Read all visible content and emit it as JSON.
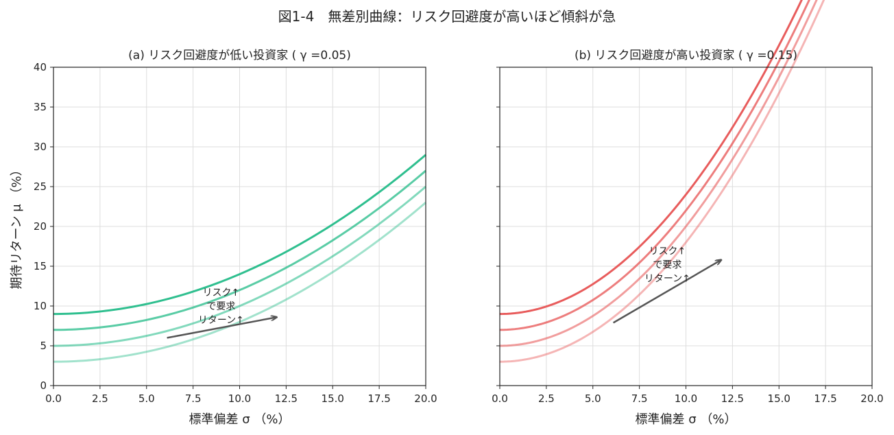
{
  "figure_title": "図1-4　無差別曲線：リスク回避度が高いほど傾斜が急",
  "colors": {
    "green": "#2fbf8f",
    "red": "#e85c5c",
    "arrow": "#555555",
    "grid": "#dddddd"
  },
  "chart_data": [
    {
      "type": "line",
      "title": "(a) リスク回避度が低い投資家 ( γ =0.05)",
      "xlabel": "標準偏差 σ （%）",
      "ylabel": "期待リターン μ （%）",
      "xlim": [
        0,
        20
      ],
      "ylim": [
        0,
        40
      ],
      "xticks": [
        "0.0",
        "2.5",
        "5.0",
        "7.5",
        "10.0",
        "12.5",
        "15.0",
        "17.5",
        "20.0"
      ],
      "yticks": [
        "0",
        "5",
        "10",
        "15",
        "20",
        "25",
        "30",
        "35",
        "40"
      ],
      "grid": true,
      "color_key": "green",
      "gamma": 0.05,
      "series": [
        {
          "intercept": 9,
          "opacity": 1.0
        },
        {
          "intercept": 7,
          "opacity": 0.8
        },
        {
          "intercept": 5,
          "opacity": 0.6
        },
        {
          "intercept": 3,
          "opacity": 0.45
        }
      ],
      "annotation": {
        "lines": [
          "リスク↑",
          "で要求",
          "リターン↑"
        ],
        "arrow_from": [
          6.1,
          6.0
        ],
        "arrow_to": [
          12.0,
          8.6
        ],
        "text_at": [
          9.0,
          10.0
        ]
      }
    },
    {
      "type": "line",
      "title": "(b) リスク回避度が高い投資家 ( γ =0.15)",
      "xlabel": "標準偏差 σ （%）",
      "ylabel": "",
      "xlim": [
        0,
        20
      ],
      "ylim": [
        0,
        40
      ],
      "xticks": [
        "0.0",
        "2.5",
        "5.0",
        "7.5",
        "10.0",
        "12.5",
        "15.0",
        "17.5",
        "20.0"
      ],
      "yticks": [
        "0",
        "5",
        "10",
        "15",
        "20",
        "25",
        "30",
        "35",
        "40"
      ],
      "show_ytick_labels": false,
      "grid": true,
      "color_key": "red",
      "gamma": 0.15,
      "series": [
        {
          "intercept": 9,
          "opacity": 1.0
        },
        {
          "intercept": 7,
          "opacity": 0.8
        },
        {
          "intercept": 5,
          "opacity": 0.6
        },
        {
          "intercept": 3,
          "opacity": 0.45
        }
      ],
      "annotation": {
        "lines": [
          "リスク↑",
          "で要求",
          "リターン↑"
        ],
        "arrow_from": [
          6.1,
          7.9
        ],
        "arrow_to": [
          11.9,
          15.8
        ],
        "text_at": [
          9.0,
          15.2
        ]
      }
    }
  ]
}
